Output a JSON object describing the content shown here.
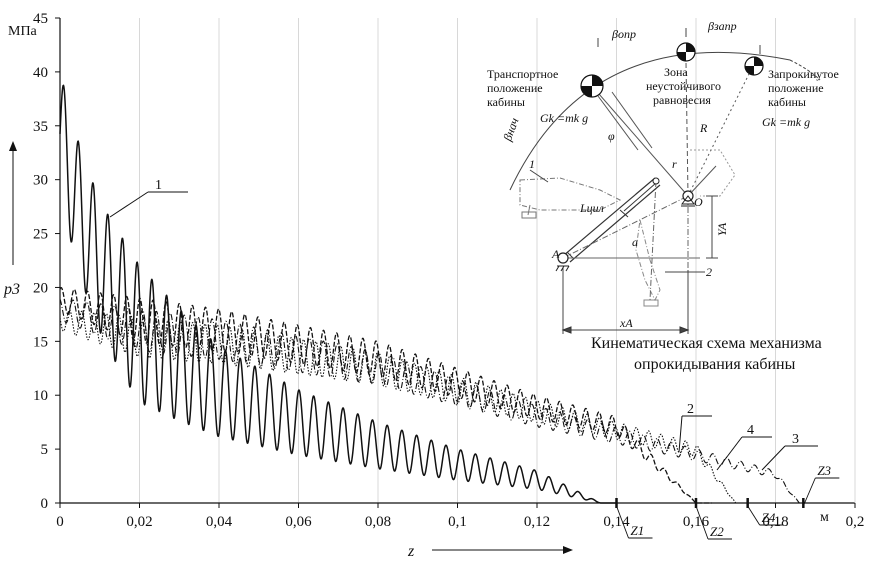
{
  "chart_data": {
    "type": "line",
    "xlabel": "z",
    "ylabel": "p3",
    "x_unit": "м",
    "y_unit": "МПа",
    "xlim": [
      0,
      0.2
    ],
    "ylim": [
      0,
      45
    ],
    "x_ticks": [
      "0",
      "0,02",
      "0,04",
      "0,06",
      "0,08",
      "0,1",
      "0,12",
      "0,14",
      "0,16",
      "0,18",
      "0,2"
    ],
    "y_ticks": [
      "0",
      "5",
      "10",
      "15",
      "20",
      "25",
      "30",
      "35",
      "40",
      "45"
    ],
    "grid": "vertical",
    "series": [
      {
        "name": "1",
        "style": "solid",
        "z_end": 0.136,
        "envelope": [
          [
            0,
            40
          ],
          [
            0.005,
            33
          ],
          [
            0.01,
            28
          ],
          [
            0.02,
            22
          ],
          [
            0.03,
            18
          ],
          [
            0.04,
            14.5
          ],
          [
            0.06,
            10.5
          ],
          [
            0.08,
            7.5
          ],
          [
            0.1,
            5
          ],
          [
            0.12,
            3
          ],
          [
            0.136,
            0
          ]
        ]
      },
      {
        "name": "2",
        "style": "dashed",
        "z_end": 0.16,
        "envelope": [
          [
            0,
            20
          ],
          [
            0.02,
            19
          ],
          [
            0.04,
            18
          ],
          [
            0.06,
            16.5
          ],
          [
            0.08,
            15
          ],
          [
            0.1,
            12.5
          ],
          [
            0.12,
            10
          ],
          [
            0.14,
            8
          ],
          [
            0.16,
            0
          ]
        ]
      },
      {
        "name": "3",
        "style": "dash-dot",
        "z_end": 0.186,
        "envelope": [
          [
            0,
            19
          ],
          [
            0.04,
            17
          ],
          [
            0.08,
            14
          ],
          [
            0.12,
            9
          ],
          [
            0.16,
            5
          ],
          [
            0.18,
            3
          ],
          [
            0.186,
            0
          ]
        ]
      },
      {
        "name": "4",
        "style": "dotted",
        "z_end": 0.17,
        "envelope": [
          [
            0,
            18
          ],
          [
            0.04,
            16.5
          ],
          [
            0.08,
            14
          ],
          [
            0.12,
            9.5
          ],
          [
            0.16,
            5.5
          ],
          [
            0.17,
            0
          ]
        ]
      }
    ],
    "annotations": [
      "1",
      "2",
      "3",
      "4"
    ],
    "stroke_markers": [
      {
        "label": "z1",
        "x": 0.14
      },
      {
        "label": "z2",
        "x": 0.16
      },
      {
        "label": "z4",
        "x": 0.173
      },
      {
        "label": "z3",
        "x": 0.187
      }
    ]
  },
  "inset": {
    "caption_line1": "Кинематическая схема механизма",
    "caption_line2": "опрокидывания кабины",
    "transport_label": [
      "Транспортное",
      "положение",
      "кабины"
    ],
    "zone_label": [
      "Зона",
      "неустойчивого",
      "равновесия"
    ],
    "tipped_label": [
      "Запрокинутое",
      "положение",
      "кабины"
    ],
    "gk_left": "Gk =mk g",
    "gk_right": "Gk =mk g",
    "beta_opr": "βопр",
    "beta_zapr": "βзапр",
    "beta_nach": "βнач",
    "phi": "φ",
    "L_cyl": "Lцил",
    "R": "R",
    "r": "r",
    "a": "a",
    "O": "O",
    "A": "A",
    "YA": "YA",
    "XA": "xA",
    "n1": "1",
    "n2": "2"
  }
}
